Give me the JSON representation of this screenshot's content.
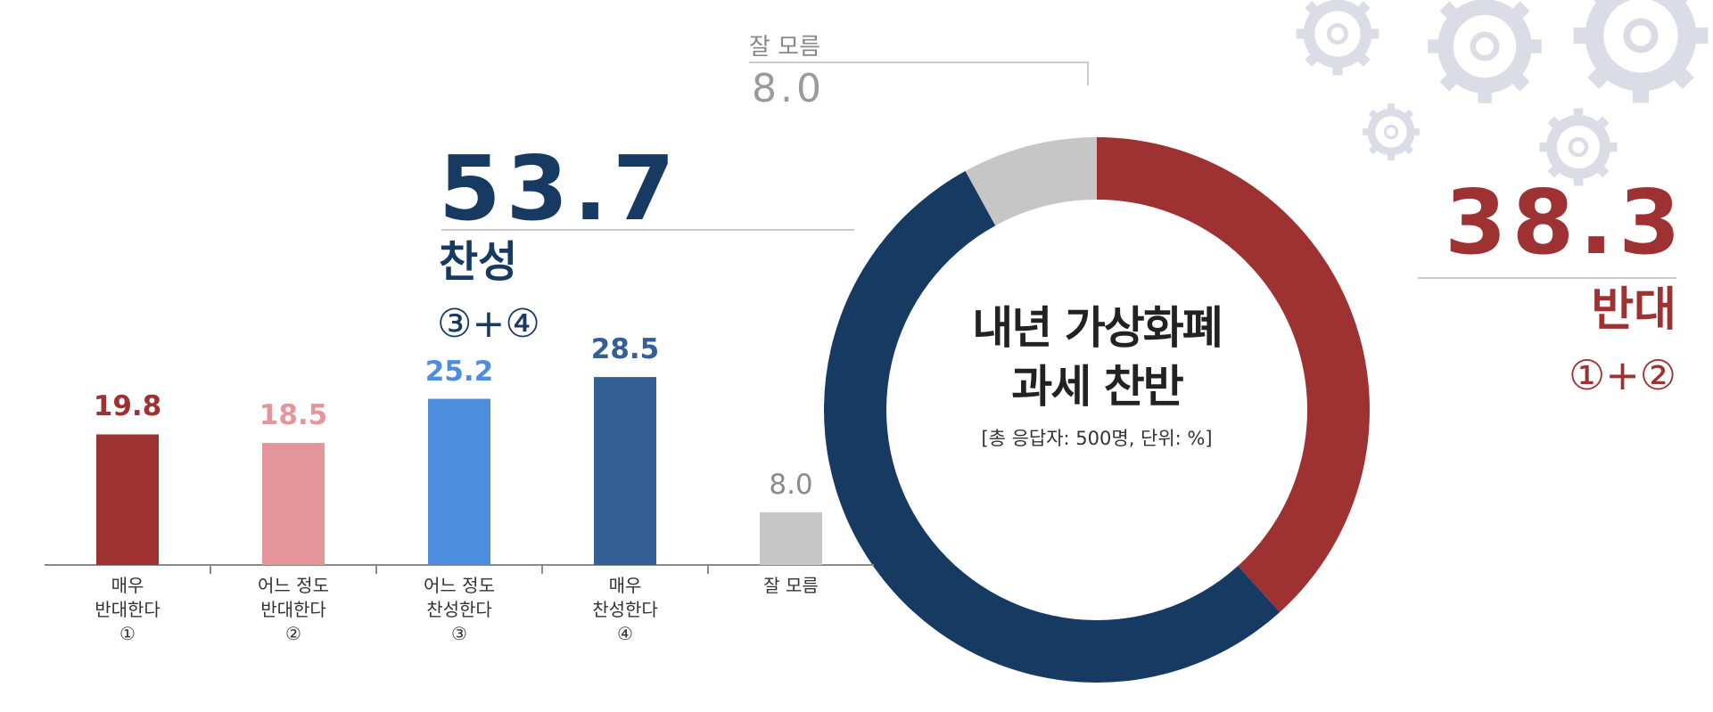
{
  "chart_data": [
    {
      "type": "pie",
      "title": "내년 가상화폐 과세 찬반",
      "title_lines": [
        "내년 가상화폐",
        "과세 찬반"
      ],
      "subtitle": "[총 응답자: 500명, 단위: %]",
      "slices": [
        {
          "name": "반대",
          "value": 38.3,
          "value_label": "38.3",
          "sub": "①+②",
          "color": "#9e3232"
        },
        {
          "name": "찬성",
          "value": 53.7,
          "value_label": "53.7",
          "sub": "③+④",
          "color": "#173a63"
        },
        {
          "name": "잘 모름",
          "value": 8.0,
          "value_label": "8.0",
          "color": "#c6c6c6"
        }
      ]
    },
    {
      "type": "bar",
      "categories": [
        {
          "lines": [
            "매우",
            "반대한다",
            "①"
          ],
          "value": 19.8,
          "value_label": "19.8",
          "color": "#9e3232"
        },
        {
          "lines": [
            "어느 정도",
            "반대한다",
            "②"
          ],
          "value": 18.5,
          "value_label": "18.5",
          "color": "#e5969b"
        },
        {
          "lines": [
            "어느 정도",
            "찬성한다",
            "③"
          ],
          "value": 25.2,
          "value_label": "25.2",
          "color": "#4c8ddd"
        },
        {
          "lines": [
            "매우",
            "찬성한다",
            "④"
          ],
          "value": 28.5,
          "value_label": "28.5",
          "color": "#335f94"
        },
        {
          "lines": [
            "잘 모름"
          ],
          "value": 8.0,
          "value_label": "8.0",
          "color": "#c6c6c6"
        }
      ],
      "ylim": [
        0,
        30
      ],
      "grid": false
    }
  ]
}
